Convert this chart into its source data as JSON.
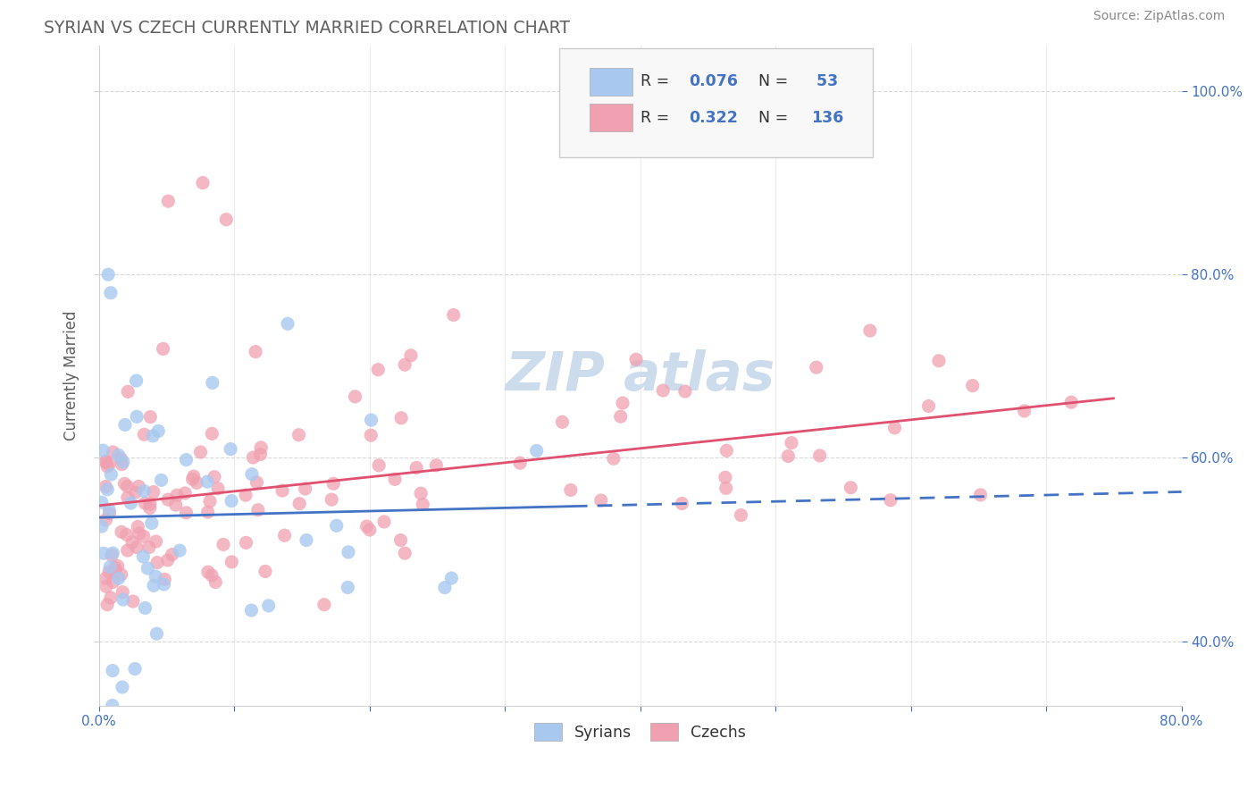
{
  "title": "SYRIAN VS CZECH CURRENTLY MARRIED CORRELATION CHART",
  "source": "Source: ZipAtlas.com",
  "ylabel": "Currently Married",
  "xlim": [
    0.0,
    0.8
  ],
  "ylim": [
    0.33,
    1.05
  ],
  "yticks": [
    0.4,
    0.6,
    0.8,
    1.0
  ],
  "yticklabels": [
    "40.0%",
    "60.0%",
    "80.0%",
    "100.0%"
  ],
  "syrian_R": 0.076,
  "syrian_N": 53,
  "czech_R": 0.322,
  "czech_N": 136,
  "syrian_color": "#a8c8f0",
  "czech_color": "#f0a0b0",
  "syrian_line_color": "#4472c4",
  "czech_line_color": "#e05070",
  "background_color": "#ffffff",
  "grid_color": "#d0d0d0",
  "watermark_color": "#ccdcec",
  "legend_box_color": "#f8f8f8",
  "title_color": "#606060",
  "axis_label_color": "#606060",
  "tick_label_color": "#4472c4",
  "source_color": "#888888"
}
